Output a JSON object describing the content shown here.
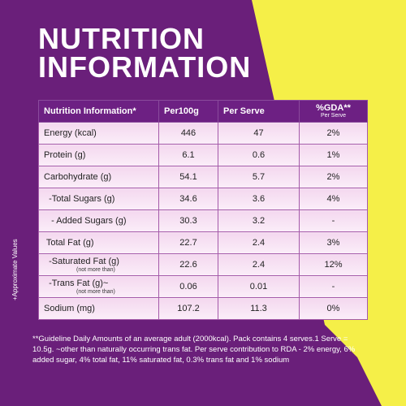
{
  "title": {
    "line1": "NUTRITION",
    "line2": "INFORMATION"
  },
  "colors": {
    "purple": "#6a1f7a",
    "yellow": "#f7f04a",
    "header": "#6d2083"
  },
  "table": {
    "headers": [
      "Nutrition Information*",
      "Per100g",
      "Per Serve",
      "%GDA**",
      "Per Serve"
    ],
    "rows": [
      {
        "label": "Energy (kcal)",
        "sub": "",
        "per100g": "446",
        "perServe": "47",
        "gda": "2%"
      },
      {
        "label": "Protein (g)",
        "sub": "",
        "per100g": "6.1",
        "perServe": "0.6",
        "gda": "1%"
      },
      {
        "label": "Carbohydrate (g)",
        "sub": "",
        "per100g": "54.1",
        "perServe": "5.7",
        "gda": "2%"
      },
      {
        "label": "  -Total Sugars (g)",
        "sub": "",
        "per100g": "34.6",
        "perServe": "3.6",
        "gda": "4%"
      },
      {
        "label": "   - Added Sugars (g)",
        "sub": "",
        "per100g": "30.3",
        "perServe": "3.2",
        "gda": "-"
      },
      {
        "label": " Total Fat (g)",
        "sub": "",
        "per100g": "22.7",
        "perServe": "2.4",
        "gda": "3%"
      },
      {
        "label": "  -Saturated Fat (g)",
        "sub": "(not more than)",
        "per100g": "22.6",
        "perServe": "2.4",
        "gda": "12%"
      },
      {
        "label": "  -Trans Fat (g)~",
        "sub": "(not more than)",
        "per100g": "0.06",
        "perServe": "0.01",
        "gda": "-"
      },
      {
        "label": "Sodium (mg)",
        "sub": "",
        "per100g": "107.2",
        "perServe": "11.3",
        "gda": "0%"
      }
    ]
  },
  "side_note": "+Approximate Values",
  "footnote": "**Guideline Daily Amounts of an average adult (2000kcal). Pack contains 4 serves.1 Serve = 10.5g. ~other than naturally occurring trans fat. Per serve contribution to RDA - 2% energy, 6% added sugar, 4% total fat, 11% saturated fat, 0.3% trans fat and 1% sodium"
}
